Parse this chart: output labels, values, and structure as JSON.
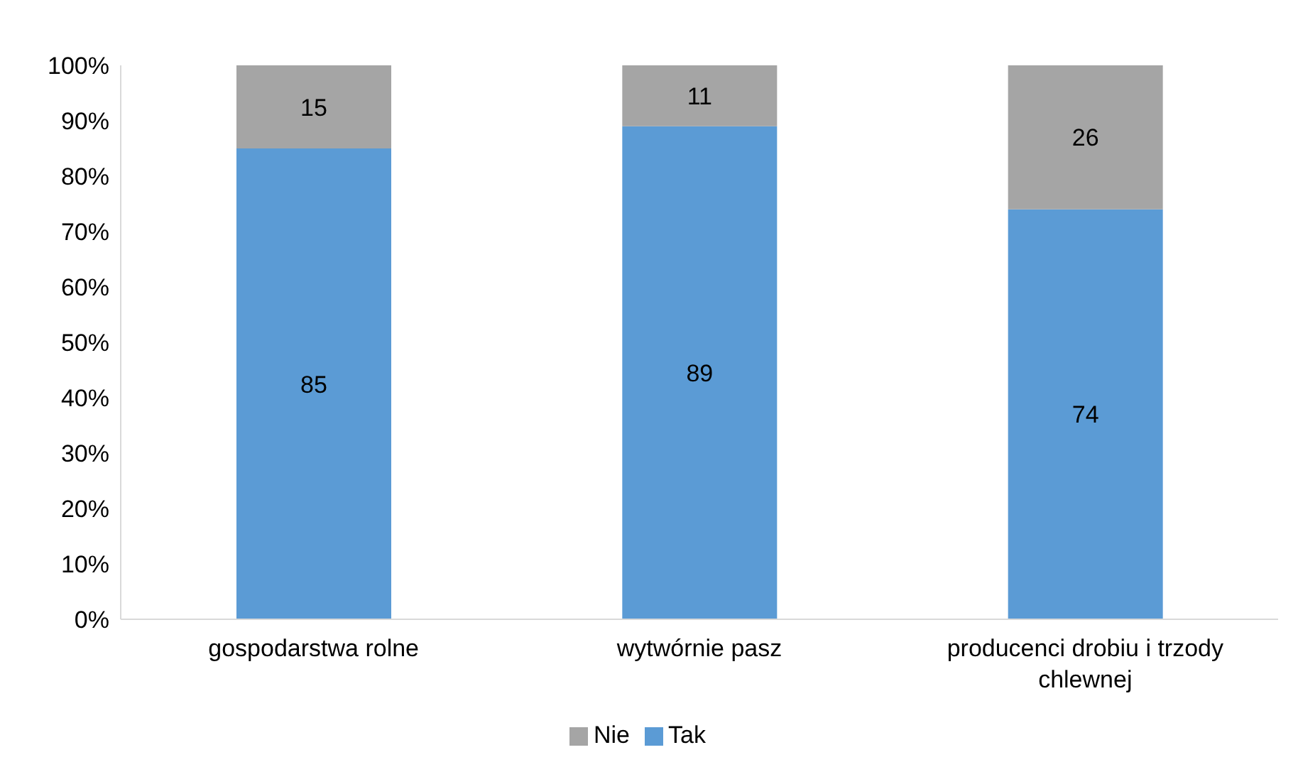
{
  "chart_data": {
    "type": "bar",
    "stacked": true,
    "categories": [
      "gospodarstwa rolne",
      "wytwórnie pasz",
      "producenci drobiu i trzody chlewnej"
    ],
    "series": [
      {
        "name": "Tak",
        "color": "#5b9bd5",
        "values": [
          85,
          89,
          74
        ]
      },
      {
        "name": "Nie",
        "color": "#a5a5a5",
        "values": [
          15,
          11,
          26
        ]
      }
    ],
    "ylim": [
      0,
      100
    ],
    "yticks": [
      {
        "value": 0,
        "label": "0%"
      },
      {
        "value": 10,
        "label": "10%"
      },
      {
        "value": 20,
        "label": "20%"
      },
      {
        "value": 30,
        "label": "30%"
      },
      {
        "value": 40,
        "label": "40%"
      },
      {
        "value": 50,
        "label": "50%"
      },
      {
        "value": 60,
        "label": "60%"
      },
      {
        "value": 70,
        "label": "70%"
      },
      {
        "value": 80,
        "label": "80%"
      },
      {
        "value": 90,
        "label": "90%"
      },
      {
        "value": 100,
        "label": "100%"
      }
    ],
    "data_labels": true,
    "grid": false,
    "legend": "bottom"
  }
}
